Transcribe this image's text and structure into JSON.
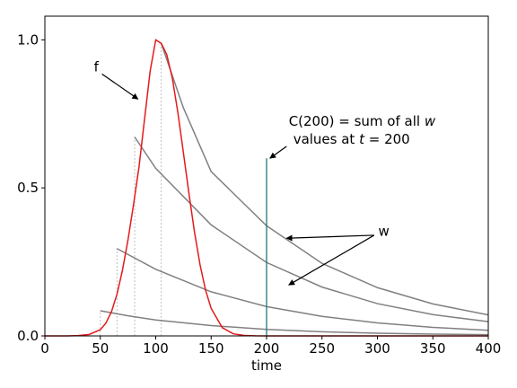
{
  "chart_data": {
    "type": "line",
    "title": "",
    "xlabel": "time",
    "ylabel": "",
    "xlim": [
      0,
      400
    ],
    "ylim": [
      0,
      1.08
    ],
    "xticks": [
      0,
      50,
      100,
      150,
      200,
      250,
      300,
      350,
      400
    ],
    "yticks": [
      0.0,
      0.5,
      1.0
    ],
    "ytick_labels": [
      "0.0",
      "0.5",
      "1.0"
    ],
    "grid": false,
    "colors": {
      "f": "#e31a1c",
      "w": "#808080",
      "marker": "#1f7a7a",
      "guide": "#b0b0b0"
    },
    "series": [
      {
        "name": "f",
        "x": [
          0,
          10,
          20,
          30,
          40,
          50,
          55,
          60,
          65,
          70,
          75,
          80,
          85,
          90,
          95,
          100,
          105,
          110,
          115,
          120,
          125,
          130,
          135,
          140,
          145,
          150,
          160,
          170,
          180,
          190,
          200,
          220,
          250,
          300,
          400
        ],
        "y": [
          0.0,
          0.0,
          0.0,
          0.001,
          0.005,
          0.021,
          0.043,
          0.081,
          0.14,
          0.222,
          0.325,
          0.444,
          0.573,
          0.735,
          0.895,
          1.0,
          0.988,
          0.95,
          0.87,
          0.754,
          0.618,
          0.48,
          0.35,
          0.24,
          0.154,
          0.093,
          0.028,
          0.007,
          0.0015,
          0.0003,
          0.0,
          0.0,
          0.0,
          0.0,
          0.0
        ]
      },
      {
        "x": [
          50,
          75,
          100,
          150,
          200,
          250,
          300,
          350,
          400
        ],
        "y": [
          0.085,
          0.068,
          0.054,
          0.035,
          0.022,
          0.014,
          0.009,
          0.006,
          0.004
        ]
      },
      {
        "x": [
          65,
          100,
          150,
          200,
          250,
          300,
          350,
          400
        ],
        "y": [
          0.295,
          0.225,
          0.149,
          0.099,
          0.066,
          0.044,
          0.029,
          0.019
        ]
      },
      {
        "x": [
          81,
          100,
          150,
          200,
          250,
          300,
          350,
          400
        ],
        "y": [
          0.672,
          0.566,
          0.375,
          0.248,
          0.165,
          0.109,
          0.072,
          0.048
        ]
      },
      {
        "x": [
          105,
          125,
          150,
          200,
          250,
          300,
          350,
          400
        ],
        "y": [
          0.988,
          0.77,
          0.555,
          0.372,
          0.245,
          0.163,
          0.108,
          0.071
        ]
      }
    ],
    "guides_x": [
      50,
      65,
      81,
      105
    ],
    "marker_x": 200,
    "marker_y_top": 0.6,
    "annotations": {
      "f_label": "f",
      "f_text_xy": [
        45,
        0.9
      ],
      "f_arrow_to": [
        84,
        0.8
      ],
      "w_label": "w",
      "w_text_xy": [
        300,
        0.35
      ],
      "w_arrow_from": [
        297,
        0.34
      ],
      "w_arrows_to": [
        [
          218,
          0.33
        ],
        [
          220,
          0.172
        ]
      ],
      "c_text_line1": "C(200) = sum of all w",
      "c_text_line2": "values at t = 200",
      "c_text_xy": [
        220,
        0.71
      ],
      "c_arrow_from": [
        218,
        0.64
      ],
      "c_arrow_to": [
        203,
        0.6
      ]
    }
  }
}
